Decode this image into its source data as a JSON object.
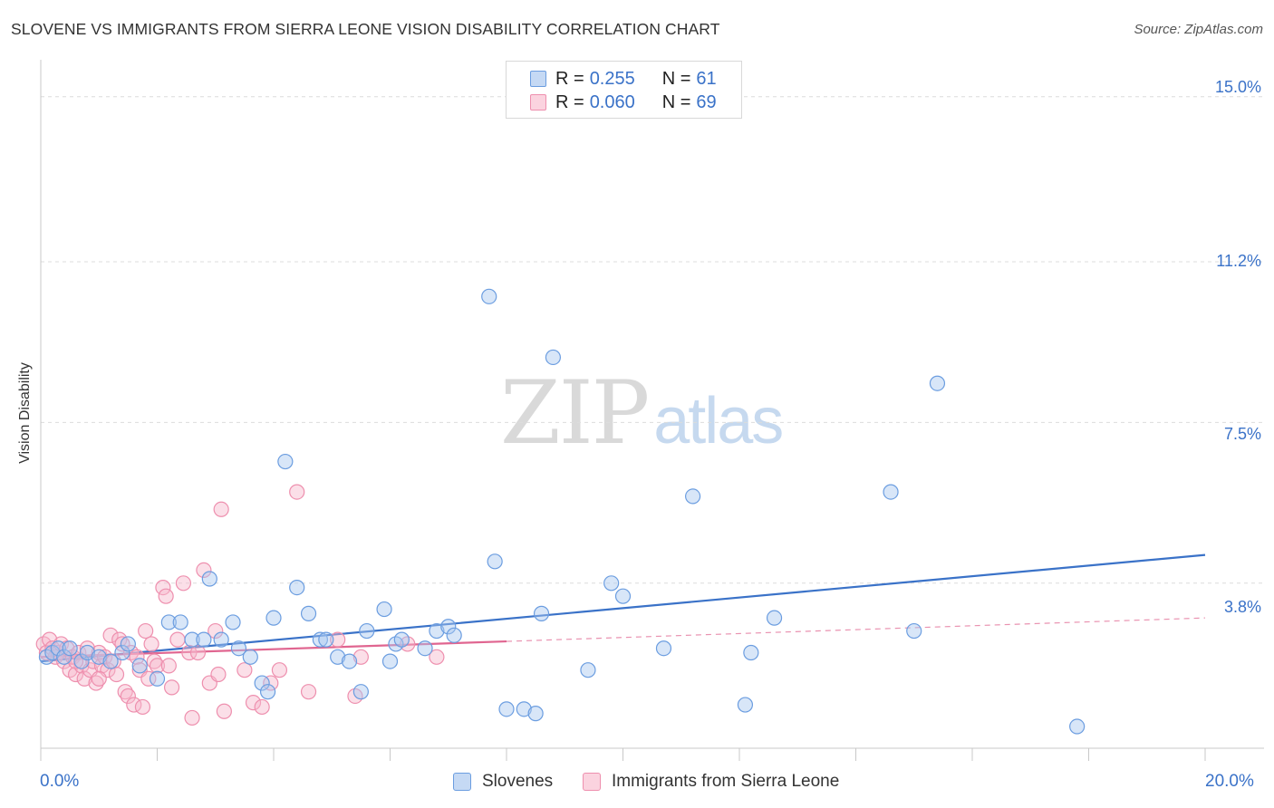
{
  "header": {
    "title": "SLOVENE VS IMMIGRANTS FROM SIERRA LEONE VISION DISABILITY CORRELATION CHART",
    "source": "Source: ZipAtlas.com"
  },
  "watermark": {
    "zip": "ZIP",
    "atlas": "atlas"
  },
  "legend": {
    "r_label": "R =",
    "n_label": "N =",
    "rows": [
      {
        "r": "0.255",
        "n": "61",
        "color": "#a9c8f0",
        "border": "#6b9de0"
      },
      {
        "r": "0.060",
        "n": "69",
        "color": "#f7b8cc",
        "border": "#ee8fae"
      }
    ]
  },
  "chart_data": {
    "type": "scatter",
    "title": "SLOVENE VS IMMIGRANTS FROM SIERRA LEONE VISION DISABILITY CORRELATION CHART",
    "xlabel": "",
    "ylabel": "Vision Disability",
    "xlim": [
      0,
      20
    ],
    "ylim": [
      0,
      15.6
    ],
    "x_tick_labels": [
      "0.0%",
      "20.0%"
    ],
    "y_ticks": [
      3.8,
      7.5,
      11.2,
      15.0
    ],
    "y_tick_labels": [
      "3.8%",
      "7.5%",
      "11.2%",
      "15.0%"
    ],
    "grid": true,
    "legend_position": "top-center",
    "series": [
      {
        "name": "Slovenes",
        "color": "#6b9de0",
        "fill": "#a9c8f0",
        "trend": {
          "x": [
            0,
            20
          ],
          "y": [
            2.0,
            4.45
          ],
          "color": "#3a72c8",
          "dashed_from": null
        },
        "points": [
          [
            0.1,
            2.1
          ],
          [
            0.2,
            2.2
          ],
          [
            0.3,
            2.3
          ],
          [
            0.4,
            2.1
          ],
          [
            0.5,
            2.3
          ],
          [
            0.7,
            2.0
          ],
          [
            0.8,
            2.2
          ],
          [
            1.0,
            2.1
          ],
          [
            1.2,
            2.0
          ],
          [
            1.4,
            2.2
          ],
          [
            1.5,
            2.4
          ],
          [
            1.7,
            1.9
          ],
          [
            2.0,
            1.6
          ],
          [
            2.2,
            2.9
          ],
          [
            2.4,
            2.9
          ],
          [
            2.6,
            2.5
          ],
          [
            2.8,
            2.5
          ],
          [
            2.9,
            3.9
          ],
          [
            3.1,
            2.5
          ],
          [
            3.3,
            2.9
          ],
          [
            3.4,
            2.3
          ],
          [
            3.6,
            2.1
          ],
          [
            3.8,
            1.5
          ],
          [
            3.9,
            1.3
          ],
          [
            4.0,
            3.0
          ],
          [
            4.2,
            6.6
          ],
          [
            4.4,
            3.7
          ],
          [
            4.6,
            3.1
          ],
          [
            4.8,
            2.5
          ],
          [
            4.9,
            2.5
          ],
          [
            5.1,
            2.1
          ],
          [
            5.3,
            2.0
          ],
          [
            5.5,
            1.3
          ],
          [
            5.6,
            2.7
          ],
          [
            5.9,
            3.2
          ],
          [
            6.0,
            2.0
          ],
          [
            6.1,
            2.4
          ],
          [
            6.2,
            2.5
          ],
          [
            6.6,
            2.3
          ],
          [
            6.8,
            2.7
          ],
          [
            7.0,
            2.8
          ],
          [
            7.1,
            2.6
          ],
          [
            7.7,
            10.4
          ],
          [
            7.8,
            4.3
          ],
          [
            8.0,
            0.9
          ],
          [
            8.3,
            0.9
          ],
          [
            8.5,
            0.8
          ],
          [
            8.6,
            3.1
          ],
          [
            8.8,
            9.0
          ],
          [
            9.4,
            1.8
          ],
          [
            9.8,
            3.8
          ],
          [
            10.0,
            3.5
          ],
          [
            10.7,
            2.3
          ],
          [
            11.2,
            5.8
          ],
          [
            12.1,
            1.0
          ],
          [
            12.2,
            2.2
          ],
          [
            12.6,
            3.0
          ],
          [
            14.6,
            5.9
          ],
          [
            15.0,
            2.7
          ],
          [
            15.4,
            8.4
          ],
          [
            17.8,
            0.5
          ]
        ]
      },
      {
        "name": "Immigrants from Sierra Leone",
        "color": "#ee8fae",
        "fill": "#f7b8cc",
        "trend": {
          "x": [
            0,
            20
          ],
          "y": [
            2.1,
            3.0
          ],
          "color": "#e06590",
          "solid_until": 8.0
        },
        "points": [
          [
            0.05,
            2.4
          ],
          [
            0.1,
            2.2
          ],
          [
            0.15,
            2.5
          ],
          [
            0.2,
            2.3
          ],
          [
            0.25,
            2.1
          ],
          [
            0.3,
            2.2
          ],
          [
            0.35,
            2.4
          ],
          [
            0.4,
            2.0
          ],
          [
            0.45,
            2.3
          ],
          [
            0.5,
            1.8
          ],
          [
            0.55,
            2.1
          ],
          [
            0.6,
            1.7
          ],
          [
            0.65,
            2.2
          ],
          [
            0.7,
            1.9
          ],
          [
            0.75,
            1.6
          ],
          [
            0.8,
            2.3
          ],
          [
            0.85,
            1.8
          ],
          [
            0.9,
            2.0
          ],
          [
            0.95,
            1.5
          ],
          [
            1.0,
            2.2
          ],
          [
            1.05,
            1.9
          ],
          [
            1.1,
            2.1
          ],
          [
            1.15,
            1.8
          ],
          [
            1.2,
            2.6
          ],
          [
            1.25,
            2.0
          ],
          [
            1.3,
            1.7
          ],
          [
            1.35,
            2.5
          ],
          [
            1.4,
            2.4
          ],
          [
            1.45,
            1.3
          ],
          [
            1.5,
            1.2
          ],
          [
            1.55,
            2.2
          ],
          [
            1.6,
            1.0
          ],
          [
            1.65,
            2.1
          ],
          [
            1.7,
            1.8
          ],
          [
            1.75,
            0.95
          ],
          [
            1.8,
            2.7
          ],
          [
            1.85,
            1.6
          ],
          [
            1.9,
            2.4
          ],
          [
            1.95,
            2.0
          ],
          [
            2.0,
            1.9
          ],
          [
            2.1,
            3.7
          ],
          [
            2.15,
            3.5
          ],
          [
            2.2,
            1.9
          ],
          [
            2.25,
            1.4
          ],
          [
            2.35,
            2.5
          ],
          [
            2.45,
            3.8
          ],
          [
            2.55,
            2.2
          ],
          [
            2.6,
            0.7
          ],
          [
            2.7,
            2.2
          ],
          [
            2.8,
            4.1
          ],
          [
            2.9,
            1.5
          ],
          [
            3.0,
            2.7
          ],
          [
            3.05,
            1.7
          ],
          [
            3.1,
            5.5
          ],
          [
            3.15,
            0.85
          ],
          [
            3.5,
            1.8
          ],
          [
            3.65,
            1.05
          ],
          [
            3.8,
            0.95
          ],
          [
            3.95,
            1.5
          ],
          [
            4.1,
            1.8
          ],
          [
            4.4,
            5.9
          ],
          [
            4.6,
            1.3
          ],
          [
            5.1,
            2.5
          ],
          [
            5.4,
            1.2
          ],
          [
            5.5,
            2.1
          ],
          [
            6.3,
            2.4
          ],
          [
            6.8,
            2.1
          ],
          [
            0.6,
            2.0
          ],
          [
            1.0,
            1.6
          ]
        ]
      }
    ]
  },
  "bottom_legend": {
    "items": [
      {
        "label": "Slovenes",
        "color": "#a9c8f0",
        "border": "#6b9de0"
      },
      {
        "label": "Immigrants from Sierra Leone",
        "color": "#f7b8cc",
        "border": "#ee8fae"
      }
    ]
  }
}
